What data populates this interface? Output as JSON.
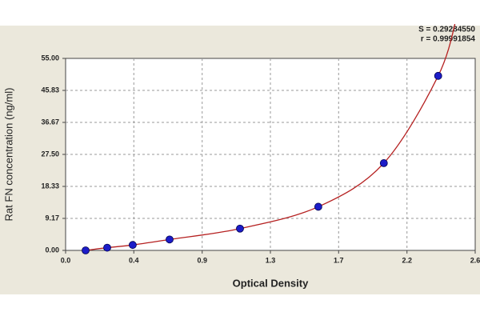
{
  "chart_data": {
    "type": "scatter",
    "annotations": [
      "S = 0.29284550",
      "r = 0.99991854"
    ],
    "x_label": "Optical Density",
    "y_label": "Rat FN concentration (ng/ml)",
    "series": [
      {
        "color": "#1c1cc8",
        "x": [
          0.127,
          0.264,
          0.426,
          0.66,
          1.107,
          1.604,
          2.02,
          2.365
        ],
        "values": [
          0,
          0.78,
          1.56,
          3.13,
          6.25,
          12.5,
          25,
          50
        ]
      }
    ],
    "fit_color": "#b52020",
    "xlim": [
      0,
      2.6
    ],
    "xticks": [
      {
        "value": 0,
        "label": "0.0"
      },
      {
        "value": 0.433,
        "label": "0.4"
      },
      {
        "value": 0.867,
        "label": "0.9"
      },
      1.3,
      {
        "value": 1.733,
        "label": "1.7"
      },
      {
        "value": 2.167,
        "label": "2.2"
      },
      2.6
    ],
    "ylim": [
      0,
      55
    ],
    "yticks": [
      {
        "value": 0,
        "label": "0.00"
      },
      9.17,
      18.33,
      {
        "value": 27.5,
        "label": "27.50"
      },
      36.67,
      45.83,
      {
        "value": 55,
        "label": "55.00"
      }
    ],
    "grid": true
  }
}
